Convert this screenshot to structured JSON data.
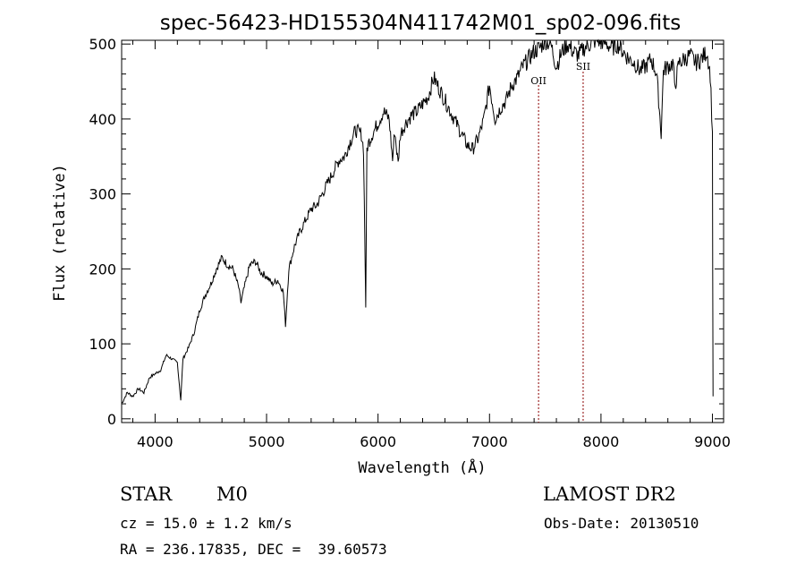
{
  "chart_data": {
    "type": "line",
    "title": "spec-56423-HD155304N411742M01_sp02-096.fits",
    "xlabel": "Wavelength (Å)",
    "ylabel": "Flux (relative)",
    "xlim": [
      3700,
      9100
    ],
    "ylim": [
      -5,
      505
    ],
    "x_ticks": [
      4000,
      5000,
      6000,
      7000,
      8000,
      9000
    ],
    "y_ticks": [
      0,
      100,
      200,
      300,
      400,
      500
    ],
    "grid": false,
    "line_color": "#000000",
    "marker_color": "#8b0000",
    "line_markers": [
      {
        "label": "OII",
        "x": 7440
      },
      {
        "label": "SII",
        "x": 7840
      }
    ],
    "series": [
      {
        "x": [
          3700,
          3750,
          3800,
          3850,
          3900,
          3950,
          4000,
          4050,
          4100,
          4150,
          4200,
          4230,
          4250,
          4300,
          4350,
          4400,
          4450,
          4500,
          4550,
          4600,
          4650,
          4700,
          4750,
          4770,
          4800,
          4850,
          4900,
          4950,
          5000,
          5050,
          5100,
          5150,
          5170,
          5200,
          5250,
          5300,
          5350,
          5400,
          5450,
          5500,
          5550,
          5600,
          5650,
          5700,
          5750,
          5800,
          5850,
          5870,
          5890,
          5900,
          5920,
          5950,
          6000,
          6050,
          6100,
          6130,
          6150,
          6180,
          6200,
          6250,
          6300,
          6350,
          6400,
          6450,
          6500,
          6550,
          6600,
          6650,
          6700,
          6750,
          6800,
          6850,
          6900,
          6950,
          7000,
          7050,
          7100,
          7150,
          7200,
          7250,
          7300,
          7350,
          7400,
          7450,
          7500,
          7550,
          7600,
          7650,
          7700,
          7750,
          7800,
          7850,
          7900,
          7950,
          8000,
          8050,
          8100,
          8150,
          8200,
          8250,
          8300,
          8350,
          8400,
          8450,
          8500,
          8540,
          8560,
          8600,
          8650,
          8660,
          8700,
          8750,
          8800,
          8850,
          8900,
          8950,
          8980,
          9000,
          9005
        ],
        "values": [
          20,
          35,
          30,
          40,
          35,
          55,
          60,
          65,
          85,
          80,
          75,
          25,
          80,
          95,
          115,
          145,
          165,
          180,
          200,
          215,
          205,
          200,
          175,
          155,
          175,
          205,
          210,
          195,
          190,
          180,
          185,
          170,
          125,
          200,
          230,
          250,
          265,
          280,
          285,
          300,
          315,
          330,
          345,
          350,
          370,
          385,
          380,
          360,
          150,
          360,
          370,
          380,
          395,
          410,
          400,
          345,
          385,
          340,
          380,
          395,
          405,
          410,
          420,
          430,
          455,
          440,
          425,
          410,
          395,
          380,
          365,
          360,
          375,
          400,
          445,
          400,
          415,
          425,
          445,
          455,
          470,
          480,
          490,
          495,
          505,
          500,
          470,
          490,
          500,
          490,
          485,
          495,
          500,
          505,
          505,
          500,
          495,
          500,
          490,
          480,
          475,
          465,
          470,
          480,
          460,
          380,
          465,
          470,
          475,
          440,
          475,
          480,
          485,
          475,
          480,
          490,
          460,
          380,
          30
        ]
      }
    ]
  },
  "info": {
    "object_class": "STAR",
    "subclass": "M0",
    "survey": "LAMOST DR2",
    "cz": "cz = 15.0 ± 1.2 km/s",
    "obs_date": "Obs-Date: 20130510",
    "coords": "RA = 236.17835, DEC =  39.60573"
  }
}
